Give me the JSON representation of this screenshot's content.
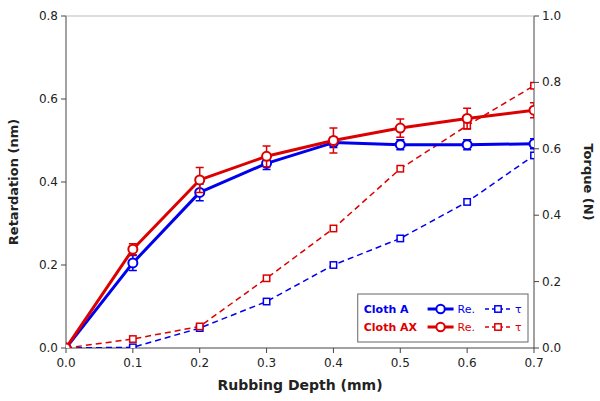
{
  "chart_data": {
    "type": "line",
    "xlabel": "Rubbing Depth (mm)",
    "ylabel": "Retardation (nm)",
    "y2label": "Torque (N)",
    "x": [
      0.0,
      0.1,
      0.2,
      0.3,
      0.4,
      0.5,
      0.6,
      0.7
    ],
    "xlim": [
      0.0,
      0.7
    ],
    "xticks": [
      {
        "value": 0.0,
        "label": "0.0"
      },
      0.1,
      0.2,
      0.3,
      0.4,
      0.5,
      0.6,
      0.7
    ],
    "ylim": [
      0.0,
      0.8
    ],
    "yticks": [
      {
        "value": 0.0,
        "label": "0.0"
      },
      0.2,
      0.4,
      0.6,
      0.8
    ],
    "y2lim": [
      0.0,
      1.0
    ],
    "y2ticks": [
      {
        "value": 0.0,
        "label": "0.0"
      },
      0.2,
      0.4,
      0.6,
      0.8,
      {
        "value": 1.0,
        "label": "1.0"
      }
    ],
    "legend": "lower right",
    "series": [
      {
        "name": "Re.",
        "color": "#0000EE",
        "line_style": "solid",
        "marker": "circle",
        "values": [
          0.0,
          0.205,
          0.375,
          0.445,
          0.495,
          0.49,
          0.49,
          0.492
        ],
        "errors": [
          0.0,
          0.018,
          0.02,
          0.015,
          0.012,
          0.012,
          0.012,
          0.012
        ]
      },
      {
        "name": "τ",
        "color": "#0000EE",
        "line_style": "dashed",
        "marker": "square",
        "axis": "y2",
        "values": [
          0.0,
          0.002,
          0.06,
          0.14,
          0.25,
          0.33,
          0.44,
          0.58
        ]
      },
      {
        "name": "Re.",
        "color": "#DD0000",
        "line_style": "solid",
        "marker": "circle",
        "values": [
          0.0,
          0.238,
          0.405,
          0.462,
          0.5,
          0.53,
          0.553,
          0.573
        ],
        "errors": [
          0.0,
          0.013,
          0.03,
          0.025,
          0.03,
          0.022,
          0.025,
          0.018
        ]
      },
      {
        "name": "τ",
        "color": "#DD0000",
        "line_style": "dashed",
        "marker": "square",
        "axis": "y2",
        "values": [
          0.0,
          0.027,
          0.065,
          0.21,
          0.36,
          0.54,
          0.67,
          0.79
        ]
      }
    ],
    "annotations": [
      {
        "text": "Cloth A",
        "color": "#0000EE"
      },
      {
        "text": "Cloth AX",
        "color": "#DD0000"
      }
    ]
  }
}
